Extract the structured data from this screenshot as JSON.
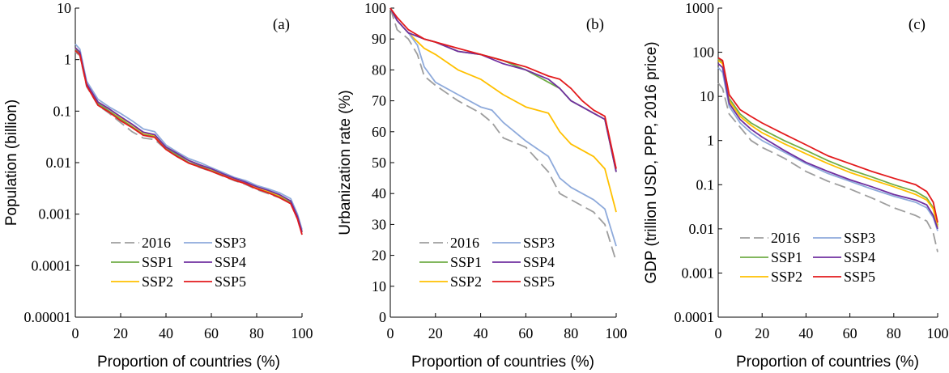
{
  "colors": {
    "2016": "#9e9e9e",
    "SSP1": "#70ad47",
    "SSP2": "#ffc000",
    "SSP3": "#8eaadb",
    "SSP4": "#7030a0",
    "SSP5": "#e31a1c"
  },
  "chart_data": [
    {
      "type": "line",
      "panel_label": "(a)",
      "ylabel": "Population (billion)",
      "xlabel": "Proportion of countries (%)",
      "yscale": "log",
      "ylim": [
        1e-05,
        10
      ],
      "xlim": [
        0,
        100
      ],
      "yticks": [
        "10",
        "1",
        "0.1",
        "0.01",
        "0.001",
        "0.0001",
        "0.00001"
      ],
      "xticks": [
        "0",
        "20",
        "40",
        "60",
        "80",
        "100"
      ],
      "legend": [
        "2016",
        "SSP3",
        "SSP1",
        "SSP4",
        "SSP2",
        "SSP5"
      ],
      "series": [
        {
          "name": "2016",
          "dashed": true,
          "x": [
            0,
            2,
            5,
            10,
            15,
            20,
            25,
            30,
            35,
            40,
            45,
            50,
            55,
            60,
            65,
            70,
            75,
            80,
            85,
            90,
            95,
            98,
            100
          ],
          "y": [
            1.4,
            1.2,
            0.3,
            0.13,
            0.09,
            0.06,
            0.04,
            0.03,
            0.028,
            0.018,
            0.013,
            0.01,
            0.008,
            0.0068,
            0.0055,
            0.0045,
            0.0038,
            0.003,
            0.0025,
            0.0021,
            0.0016,
            0.0008,
            0.0004
          ]
        },
        {
          "name": "SSP1",
          "x": [
            0,
            2,
            5,
            10,
            15,
            20,
            25,
            30,
            35,
            40,
            45,
            50,
            55,
            60,
            65,
            70,
            75,
            80,
            85,
            90,
            95,
            98,
            100
          ],
          "y": [
            1.6,
            1.3,
            0.32,
            0.14,
            0.1,
            0.07,
            0.05,
            0.035,
            0.032,
            0.019,
            0.014,
            0.01,
            0.0085,
            0.007,
            0.0058,
            0.0047,
            0.004,
            0.0032,
            0.0027,
            0.0022,
            0.0017,
            0.0009,
            0.00045
          ]
        },
        {
          "name": "SSP2",
          "x": [
            0,
            2,
            5,
            10,
            15,
            20,
            25,
            30,
            35,
            40,
            45,
            50,
            55,
            60,
            65,
            70,
            75,
            80,
            85,
            90,
            95,
            98,
            100
          ],
          "y": [
            1.7,
            1.4,
            0.33,
            0.15,
            0.11,
            0.075,
            0.055,
            0.038,
            0.034,
            0.02,
            0.015,
            0.011,
            0.009,
            0.0075,
            0.006,
            0.0049,
            0.0041,
            0.0033,
            0.0028,
            0.0023,
            0.0018,
            0.0009,
            0.00045
          ]
        },
        {
          "name": "SSP3",
          "x": [
            0,
            2,
            5,
            10,
            15,
            20,
            25,
            30,
            35,
            40,
            45,
            50,
            55,
            60,
            65,
            70,
            75,
            80,
            85,
            90,
            95,
            98,
            100
          ],
          "y": [
            2.0,
            1.6,
            0.38,
            0.17,
            0.12,
            0.09,
            0.065,
            0.045,
            0.04,
            0.022,
            0.016,
            0.012,
            0.01,
            0.008,
            0.0065,
            0.0052,
            0.0045,
            0.0036,
            0.0031,
            0.0026,
            0.002,
            0.001,
            0.0005
          ]
        },
        {
          "name": "SSP4",
          "x": [
            0,
            2,
            5,
            10,
            15,
            20,
            25,
            30,
            35,
            40,
            45,
            50,
            55,
            60,
            65,
            70,
            75,
            80,
            85,
            90,
            95,
            98,
            100
          ],
          "y": [
            1.7,
            1.4,
            0.34,
            0.15,
            0.11,
            0.078,
            0.056,
            0.039,
            0.035,
            0.02,
            0.015,
            0.011,
            0.009,
            0.0076,
            0.0061,
            0.005,
            0.0042,
            0.0034,
            0.0029,
            0.0024,
            0.0018,
            0.0009,
            0.00045
          ]
        },
        {
          "name": "SSP5",
          "x": [
            0,
            2,
            5,
            10,
            15,
            20,
            25,
            30,
            35,
            40,
            45,
            50,
            55,
            60,
            65,
            70,
            75,
            80,
            85,
            90,
            95,
            98,
            100
          ],
          "y": [
            1.5,
            1.25,
            0.31,
            0.13,
            0.095,
            0.065,
            0.048,
            0.034,
            0.031,
            0.018,
            0.013,
            0.0098,
            0.0082,
            0.0068,
            0.0056,
            0.0046,
            0.0039,
            0.0031,
            0.0026,
            0.0021,
            0.0016,
            0.0008,
            0.0004
          ]
        }
      ]
    },
    {
      "type": "line",
      "panel_label": "(b)",
      "ylabel": "Urbanization rate (%)",
      "xlabel": "Proportion of countries (%)",
      "yscale": "linear",
      "ylim": [
        0,
        100
      ],
      "xlim": [
        0,
        100
      ],
      "yticks": [
        "0",
        "10",
        "20",
        "30",
        "40",
        "50",
        "60",
        "70",
        "80",
        "90",
        "100"
      ],
      "xticks": [
        "0",
        "20",
        "40",
        "60",
        "80",
        "100"
      ],
      "legend": [
        "2016",
        "SSP3",
        "SSP1",
        "SSP4",
        "SSP2",
        "SSP5"
      ],
      "series": [
        {
          "name": "2016",
          "dashed": true,
          "x": [
            0,
            3,
            8,
            12,
            15,
            20,
            30,
            40,
            45,
            50,
            60,
            70,
            75,
            80,
            90,
            95,
            100
          ],
          "y": [
            100,
            93,
            90,
            85,
            78,
            75,
            70,
            66,
            63,
            58,
            55,
            47,
            40,
            38,
            34,
            30,
            18
          ]
        },
        {
          "name": "SSP1",
          "x": [
            0,
            3,
            8,
            15,
            20,
            30,
            40,
            50,
            60,
            70,
            75,
            80,
            85,
            90,
            95,
            100
          ],
          "y": [
            100,
            96,
            92,
            90,
            89,
            86,
            85,
            83,
            80,
            76,
            74,
            70,
            68,
            66,
            64,
            47
          ]
        },
        {
          "name": "SSP2",
          "x": [
            0,
            3,
            8,
            15,
            20,
            30,
            40,
            50,
            60,
            70,
            75,
            80,
            85,
            90,
            95,
            100
          ],
          "y": [
            100,
            96,
            92,
            87,
            85,
            80,
            77,
            72,
            68,
            66,
            60,
            56,
            54,
            52,
            48,
            34
          ]
        },
        {
          "name": "SSP3",
          "x": [
            0,
            3,
            8,
            12,
            15,
            20,
            30,
            40,
            45,
            50,
            60,
            70,
            75,
            80,
            90,
            95,
            100
          ],
          "y": [
            100,
            96,
            92,
            88,
            81,
            76,
            72,
            68,
            67,
            63,
            57,
            52,
            45,
            42,
            38,
            35,
            23
          ]
        },
        {
          "name": "SSP4",
          "x": [
            0,
            3,
            8,
            15,
            20,
            30,
            40,
            50,
            60,
            70,
            75,
            80,
            85,
            90,
            95,
            100
          ],
          "y": [
            100,
            96,
            92,
            90,
            89,
            86,
            85,
            82,
            80,
            77,
            74,
            70,
            68,
            66,
            64,
            47
          ]
        },
        {
          "name": "SSP5",
          "x": [
            0,
            3,
            8,
            15,
            20,
            30,
            40,
            50,
            60,
            70,
            75,
            80,
            85,
            90,
            95,
            100
          ],
          "y": [
            100,
            97,
            93,
            90,
            89,
            87,
            85,
            83,
            81,
            78,
            77,
            74,
            70,
            67,
            65,
            48
          ]
        }
      ]
    },
    {
      "type": "line",
      "panel_label": "(c)",
      "ylabel": "GDP (trillion USD, PPP, 2016 price)",
      "xlabel": "Proportion of countries (%)",
      "yscale": "log",
      "ylim": [
        0.0001,
        1000
      ],
      "xlim": [
        0,
        100
      ],
      "yticks": [
        "1000",
        "100",
        "10",
        "1",
        "0.1",
        "0.01",
        "0.001",
        "0.0001"
      ],
      "xticks": [
        "0",
        "20",
        "40",
        "60",
        "80",
        "100"
      ],
      "legend": [
        "2016",
        "SSP3",
        "SSP1",
        "SSP4",
        "SSP2",
        "SSP5"
      ],
      "series": [
        {
          "name": "2016",
          "dashed": true,
          "x": [
            0,
            2,
            5,
            10,
            15,
            20,
            30,
            40,
            50,
            60,
            70,
            80,
            90,
            95,
            98,
            100
          ],
          "y": [
            20,
            15,
            4,
            2,
            1,
            0.7,
            0.4,
            0.2,
            0.12,
            0.08,
            0.05,
            0.03,
            0.02,
            0.015,
            0.008,
            0.003
          ]
        },
        {
          "name": "SSP1",
          "x": [
            0,
            2,
            5,
            10,
            15,
            20,
            30,
            40,
            50,
            60,
            70,
            80,
            90,
            95,
            98,
            100
          ],
          "y": [
            70,
            60,
            9,
            4,
            2.5,
            1.8,
            1.0,
            0.6,
            0.35,
            0.22,
            0.15,
            0.1,
            0.07,
            0.05,
            0.03,
            0.012
          ]
        },
        {
          "name": "SSP2",
          "x": [
            0,
            2,
            5,
            10,
            15,
            20,
            30,
            40,
            50,
            60,
            70,
            80,
            90,
            95,
            98,
            100
          ],
          "y": [
            65,
            55,
            8,
            3.5,
            2.2,
            1.5,
            0.85,
            0.5,
            0.3,
            0.19,
            0.13,
            0.09,
            0.06,
            0.045,
            0.028,
            0.011
          ]
        },
        {
          "name": "SSP3",
          "x": [
            0,
            2,
            5,
            10,
            15,
            20,
            30,
            40,
            50,
            60,
            70,
            80,
            90,
            95,
            98,
            100
          ],
          "y": [
            45,
            35,
            6,
            2.5,
            1.5,
            1.0,
            0.55,
            0.3,
            0.18,
            0.12,
            0.08,
            0.055,
            0.04,
            0.03,
            0.018,
            0.009
          ]
        },
        {
          "name": "SSP4",
          "x": [
            0,
            2,
            5,
            10,
            15,
            20,
            30,
            40,
            50,
            60,
            70,
            80,
            90,
            95,
            98,
            100
          ],
          "y": [
            55,
            45,
            7,
            3,
            1.8,
            1.2,
            0.6,
            0.32,
            0.2,
            0.13,
            0.09,
            0.06,
            0.045,
            0.035,
            0.02,
            0.01
          ]
        },
        {
          "name": "SSP5",
          "x": [
            0,
            2,
            5,
            10,
            15,
            20,
            30,
            40,
            50,
            60,
            70,
            80,
            90,
            95,
            98,
            100
          ],
          "y": [
            75,
            65,
            11,
            5,
            3.5,
            2.5,
            1.4,
            0.8,
            0.45,
            0.3,
            0.2,
            0.14,
            0.1,
            0.07,
            0.04,
            0.014
          ]
        }
      ]
    }
  ]
}
